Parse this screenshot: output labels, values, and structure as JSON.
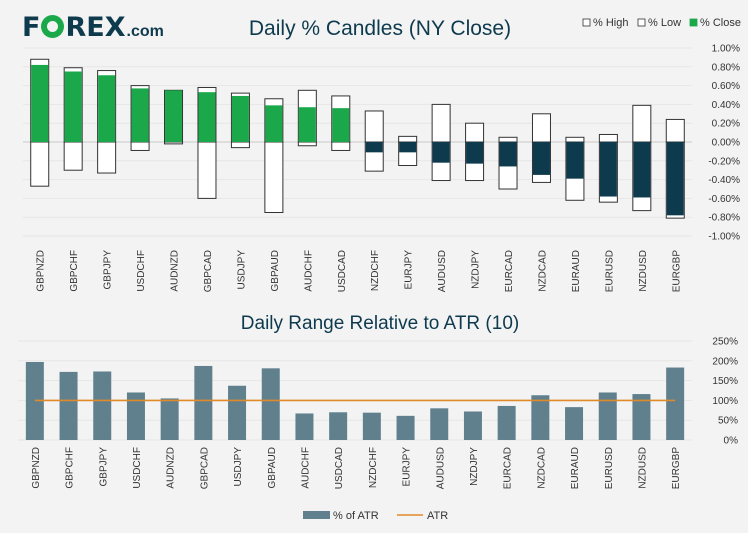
{
  "brand": {
    "logo_text": "FOREX",
    "logo_suffix": ".com"
  },
  "colors": {
    "up": "#1aa84a",
    "down": "#0e3a4e",
    "range": "#60808e",
    "atr": "#e08a2a",
    "text": "#0e3a4e"
  },
  "chart_data": [
    {
      "type": "bar",
      "title": "Daily % Candles (NY Close)",
      "legend": [
        "% High",
        "% Low",
        "% Close"
      ],
      "categories": [
        "GBPNZD",
        "GBPCHF",
        "GBPJPY",
        "USDCHF",
        "AUDNZD",
        "GBPCAD",
        "USDJPY",
        "GBPAUD",
        "AUDCHF",
        "USDCAD",
        "NZDCHF",
        "EURJPY",
        "AUDUSD",
        "NZDJPY",
        "EURCAD",
        "NZDCAD",
        "EURAUD",
        "EURUSD",
        "NZDUSD",
        "EURGBP"
      ],
      "series": [
        {
          "name": "% High",
          "values": [
            0.88,
            0.79,
            0.76,
            0.6,
            0.55,
            0.58,
            0.52,
            0.46,
            0.55,
            0.49,
            0.33,
            0.06,
            0.4,
            0.2,
            0.05,
            0.3,
            0.05,
            0.08,
            0.39,
            0.24
          ]
        },
        {
          "name": "% Low",
          "values": [
            -0.47,
            -0.3,
            -0.33,
            -0.09,
            -0.02,
            -0.6,
            -0.06,
            -0.75,
            -0.04,
            -0.09,
            -0.31,
            -0.25,
            -0.41,
            -0.41,
            -0.5,
            -0.43,
            -0.62,
            -0.64,
            -0.73,
            -0.81
          ]
        },
        {
          "name": "% Close",
          "values": [
            0.82,
            0.75,
            0.71,
            0.57,
            0.55,
            0.53,
            0.49,
            0.39,
            0.37,
            0.36,
            -0.11,
            -0.11,
            -0.22,
            -0.23,
            -0.26,
            -0.35,
            -0.39,
            -0.58,
            -0.59,
            -0.78
          ]
        }
      ],
      "yticks": [
        "1.00%",
        "0.80%",
        "0.60%",
        "0.40%",
        "0.20%",
        "0.00%",
        "-0.20%",
        "-0.40%",
        "-0.60%",
        "-0.80%",
        "-1.00%"
      ],
      "ylim": [
        -1.0,
        1.0
      ]
    },
    {
      "type": "bar",
      "title": "Daily Range Relative to ATR (10)",
      "legend": [
        "% of ATR",
        "ATR"
      ],
      "categories": [
        "GBPNZD",
        "GBPCHF",
        "GBPJPY",
        "USDCHF",
        "AUDNZD",
        "GBPCAD",
        "USDJPY",
        "GBPAUD",
        "AUDCHF",
        "USDCAD",
        "NZDCHF",
        "EURJPY",
        "AUDUSD",
        "NZDJPY",
        "EURCAD",
        "NZDCAD",
        "EURAUD",
        "EURUSD",
        "NZDUSD",
        "EURGBP"
      ],
      "series": [
        {
          "name": "% of ATR",
          "values": [
            197,
            172,
            173,
            120,
            105,
            187,
            137,
            181,
            67,
            70,
            69,
            61,
            80,
            72,
            86,
            113,
            83,
            120,
            116,
            183
          ]
        },
        {
          "name": "ATR",
          "values": [
            100,
            100,
            100,
            100,
            100,
            100,
            100,
            100,
            100,
            100,
            100,
            100,
            100,
            100,
            100,
            100,
            100,
            100,
            100,
            100
          ]
        }
      ],
      "yticks": [
        "250%",
        "200%",
        "150%",
        "100%",
        "50%",
        "0%"
      ],
      "ylim": [
        0,
        250
      ]
    }
  ]
}
